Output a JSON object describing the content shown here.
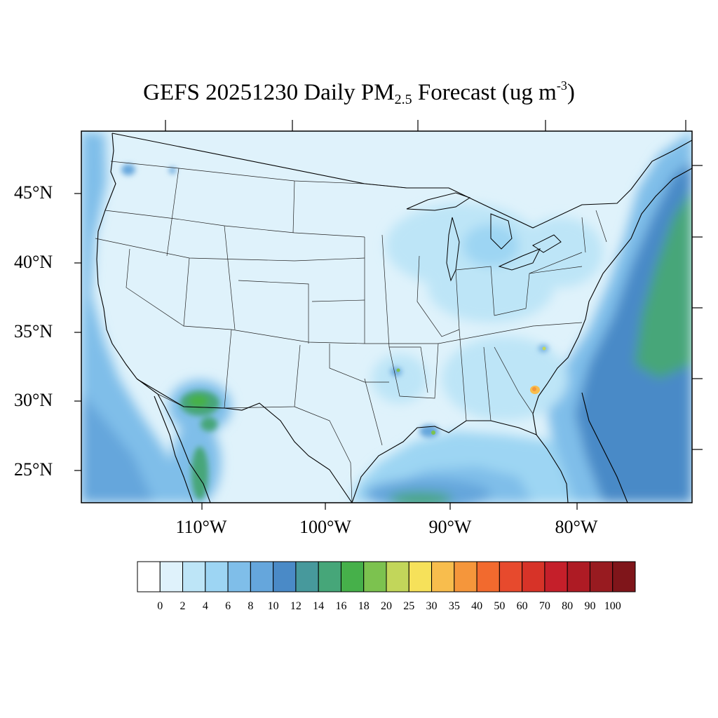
{
  "title": {
    "prefix": "GEFS 20251230 Daily PM",
    "subscript": "2.5",
    "middle": " Forecast (ug m",
    "superscript": "-3",
    "suffix": ")"
  },
  "map": {
    "projection": "Lambert conformal (CONUS)",
    "lat_labels": [
      "45°N",
      "40°N",
      "35°N",
      "30°N",
      "25°N"
    ],
    "lon_labels": [
      "110°W",
      "100°W",
      "90°W",
      "80°W"
    ],
    "background_color": "#dff2fb",
    "boundary_color": "#000000"
  },
  "colorbar": {
    "colors": [
      "#ffffff",
      "#dff2fb",
      "#bde5f7",
      "#9dd5f3",
      "#7fbee9",
      "#65a6dc",
      "#4a8ac7",
      "#47999c",
      "#46a679",
      "#46b04a",
      "#7cc24f",
      "#c2d65a",
      "#f6e15a",
      "#f8bd4d",
      "#f5963b",
      "#f26a2e",
      "#e74a2d",
      "#d73328",
      "#c51f2a",
      "#ae1b24",
      "#981b20",
      "#7f151a"
    ],
    "labels": [
      "0",
      "2",
      "4",
      "6",
      "8",
      "10",
      "12",
      "14",
      "16",
      "18",
      "20",
      "25",
      "30",
      "35",
      "40",
      "50",
      "60",
      "70",
      "80",
      "90",
      "100"
    ]
  },
  "regions": [
    {
      "name": "Pacific Ocean",
      "color": "#7fbee9"
    },
    {
      "name": "Atlantic Ocean",
      "color": "#4a8ac7"
    },
    {
      "name": "Atlantic far offshore",
      "color": "#46a679"
    },
    {
      "name": "Gulf of Mexico",
      "color": "#9dd5f3"
    },
    {
      "name": "Sonora / Arizona hotspot",
      "color": "#46b04a"
    },
    {
      "name": "Gulf of California",
      "color": "#7cc24f"
    },
    {
      "name": "Great Lakes haze",
      "color": "#9dd5f3"
    },
    {
      "name": "Eastern seaboard",
      "color": "#9dd5f3"
    },
    {
      "name": "Southeast coastal hotspot",
      "color": "#f8bd4d"
    }
  ]
}
